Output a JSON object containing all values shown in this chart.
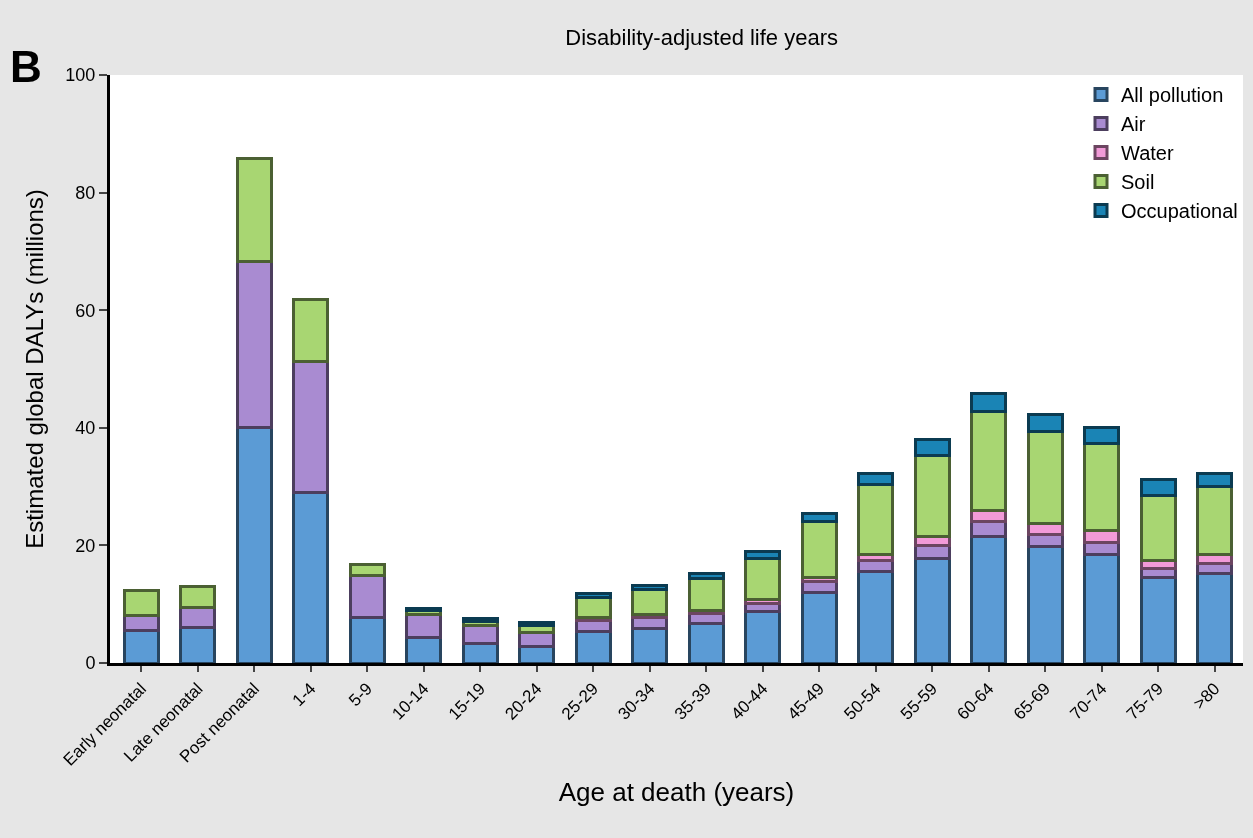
{
  "chart_data": {
    "type": "bar",
    "title": "Disability-adjusted life years",
    "xlabel": "Age at death (years)",
    "ylabel": "Estimated global DALYs (millions)",
    "annotations": [
      "B"
    ],
    "categories": [
      "Early neonatal",
      "Late neonatal",
      "Post neonatal",
      "1-4",
      "5-9",
      "10-14",
      "15-19",
      "20-24",
      "25-29",
      "30-34",
      "35-39",
      "40-44",
      "45-49",
      "50-54",
      "55-59",
      "60-64",
      "65-69",
      "70-74",
      "75-79",
      ">80"
    ],
    "stacked": true,
    "ylim": [
      0,
      100
    ],
    "yticks": [
      0,
      20,
      40,
      60,
      80,
      100
    ],
    "legend": "top right",
    "series": [
      {
        "name": "All pollution",
        "color": "#5b9bd5",
        "values": [
          5.5,
          6,
          40,
          29,
          7.8,
          4.3,
          3.3,
          2.8,
          5.3,
          5.8,
          6.8,
          8.7,
          12,
          15.5,
          17.8,
          21.5,
          19.8,
          18.5,
          14.5,
          15.3
        ]
      },
      {
        "name": "Air",
        "color": "#a98bd1",
        "values": [
          2.5,
          3.5,
          28.3,
          22.3,
          7,
          4,
          3,
          2.4,
          2,
          2,
          1.7,
          1.5,
          1.8,
          2,
          2.2,
          2.5,
          2,
          2,
          1.5,
          1.7
        ]
      },
      {
        "name": "Water",
        "color": "#f29ad8",
        "values": [
          null,
          null,
          null,
          null,
          null,
          null,
          null,
          null,
          0.5,
          0.5,
          0.5,
          0.6,
          0.8,
          1,
          1.5,
          2,
          2,
          2,
          1.5,
          1.5
        ]
      },
      {
        "name": "Soil",
        "color": "#a8d672",
        "values": [
          4.3,
          3.5,
          17.5,
          10.5,
          1.9,
          0.7,
          0.8,
          1.2,
          3.3,
          4.2,
          5.3,
          7,
          9.4,
          11.8,
          13.8,
          16.8,
          15.6,
          14.8,
          11,
          11.5
        ]
      },
      {
        "name": "Occupational",
        "color": "#1a84b5",
        "values": [
          null,
          null,
          null,
          null,
          null,
          0.3,
          0.5,
          0.5,
          0.7,
          0.7,
          1,
          1.2,
          1.4,
          2,
          2.7,
          3,
          2.9,
          2.8,
          2.7,
          2.3
        ]
      }
    ]
  }
}
